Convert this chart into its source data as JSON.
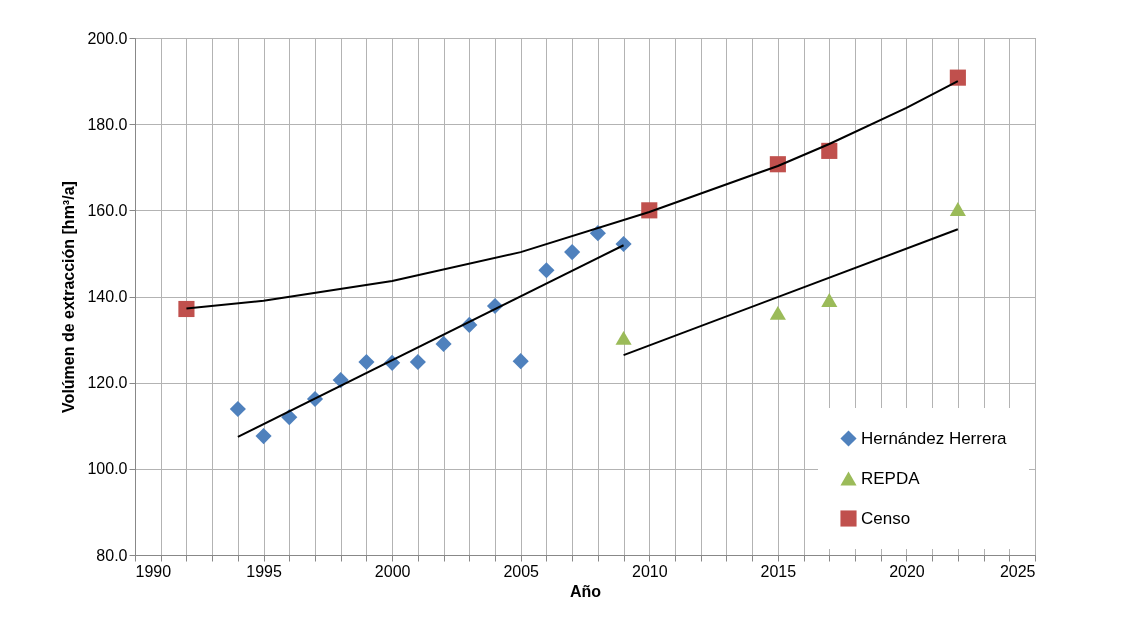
{
  "chart_data": {
    "type": "scatter",
    "xlabel": "Año",
    "ylabel": "Volúmen de extracción [hm³/a]",
    "xlim": [
      1990,
      2025
    ],
    "xticks": [
      1990,
      {
        "value": 1991,
        "label": null
      },
      {
        "value": 1992,
        "label": null
      },
      {
        "value": 1993,
        "label": null
      },
      {
        "value": 1994,
        "label": null
      },
      1995,
      {
        "value": 1996,
        "label": null
      },
      {
        "value": 1997,
        "label": null
      },
      {
        "value": 1998,
        "label": null
      },
      {
        "value": 1999,
        "label": null
      },
      2000,
      {
        "value": 2001,
        "label": null
      },
      {
        "value": 2002,
        "label": null
      },
      {
        "value": 2003,
        "label": null
      },
      {
        "value": 2004,
        "label": null
      },
      2005,
      {
        "value": 2006,
        "label": null
      },
      {
        "value": 2007,
        "label": null
      },
      {
        "value": 2008,
        "label": null
      },
      {
        "value": 2009,
        "label": null
      },
      2010,
      {
        "value": 2011,
        "label": null
      },
      {
        "value": 2012,
        "label": null
      },
      {
        "value": 2013,
        "label": null
      },
      {
        "value": 2014,
        "label": null
      },
      2015,
      {
        "value": 2016,
        "label": null
      },
      {
        "value": 2017,
        "label": null
      },
      {
        "value": 2018,
        "label": null
      },
      {
        "value": 2019,
        "label": null
      },
      2020,
      {
        "value": 2021,
        "label": null
      },
      {
        "value": 2022,
        "label": null
      },
      {
        "value": 2023,
        "label": null
      },
      {
        "value": 2024,
        "label": null
      },
      2025
    ],
    "ylim": [
      80,
      200
    ],
    "yticks": [
      {
        "value": 80,
        "label": "80.0"
      },
      {
        "value": 100,
        "label": "100.0"
      },
      {
        "value": 120,
        "label": "120.0"
      },
      {
        "value": 140,
        "label": "140.0"
      },
      {
        "value": 160,
        "label": "160.0"
      },
      {
        "value": 180,
        "label": "180.0"
      },
      {
        "value": 200,
        "label": "200.0"
      }
    ],
    "grid": true,
    "legend": "bottom right",
    "series": [
      {
        "name": "Hernández Herrera",
        "color": "#4f81bd",
        "marker": "diamond",
        "x": [
          1994,
          1995,
          1996,
          1997,
          1998,
          1999,
          2000,
          2001,
          2002,
          2003,
          2004,
          2005,
          2006,
          2007,
          2008,
          2009
        ],
        "values": [
          113.9,
          107.6,
          112.0,
          116.2,
          120.6,
          124.8,
          124.6,
          124.8,
          129.0,
          133.4,
          137.8,
          125.0,
          146.1,
          150.3,
          154.7,
          152.2
        ]
      },
      {
        "name": "REPDA",
        "color": "#9bbb59",
        "marker": "triangle",
        "x": [
          2009,
          2015,
          2017,
          2022
        ],
        "values": [
          130.4,
          136.2,
          139.2,
          160.3
        ]
      },
      {
        "name": "Censo",
        "color": "#c0504d",
        "marker": "square",
        "x": [
          1992,
          2010,
          2015,
          2017,
          2022
        ],
        "values": [
          137.1,
          160.0,
          170.7,
          173.8,
          190.8
        ]
      },
      {
        "type": "line",
        "color": "#000000",
        "marker": "none",
        "x": [
          1994,
          2009
        ],
        "values": [
          107.4,
          151.9
        ]
      },
      {
        "type": "line",
        "color": "#000000",
        "marker": "none",
        "x": [
          2009,
          2022
        ],
        "values": [
          126.4,
          155.6
        ]
      },
      {
        "type": "line",
        "color": "#000000",
        "marker": "none",
        "x": [
          1992,
          1995,
          2000,
          2005,
          2010,
          2015,
          2017,
          2020,
          2022
        ],
        "values": [
          137.2,
          139.0,
          143.6,
          150.3,
          159.6,
          170.3,
          175.4,
          183.8,
          190.0
        ]
      }
    ]
  }
}
